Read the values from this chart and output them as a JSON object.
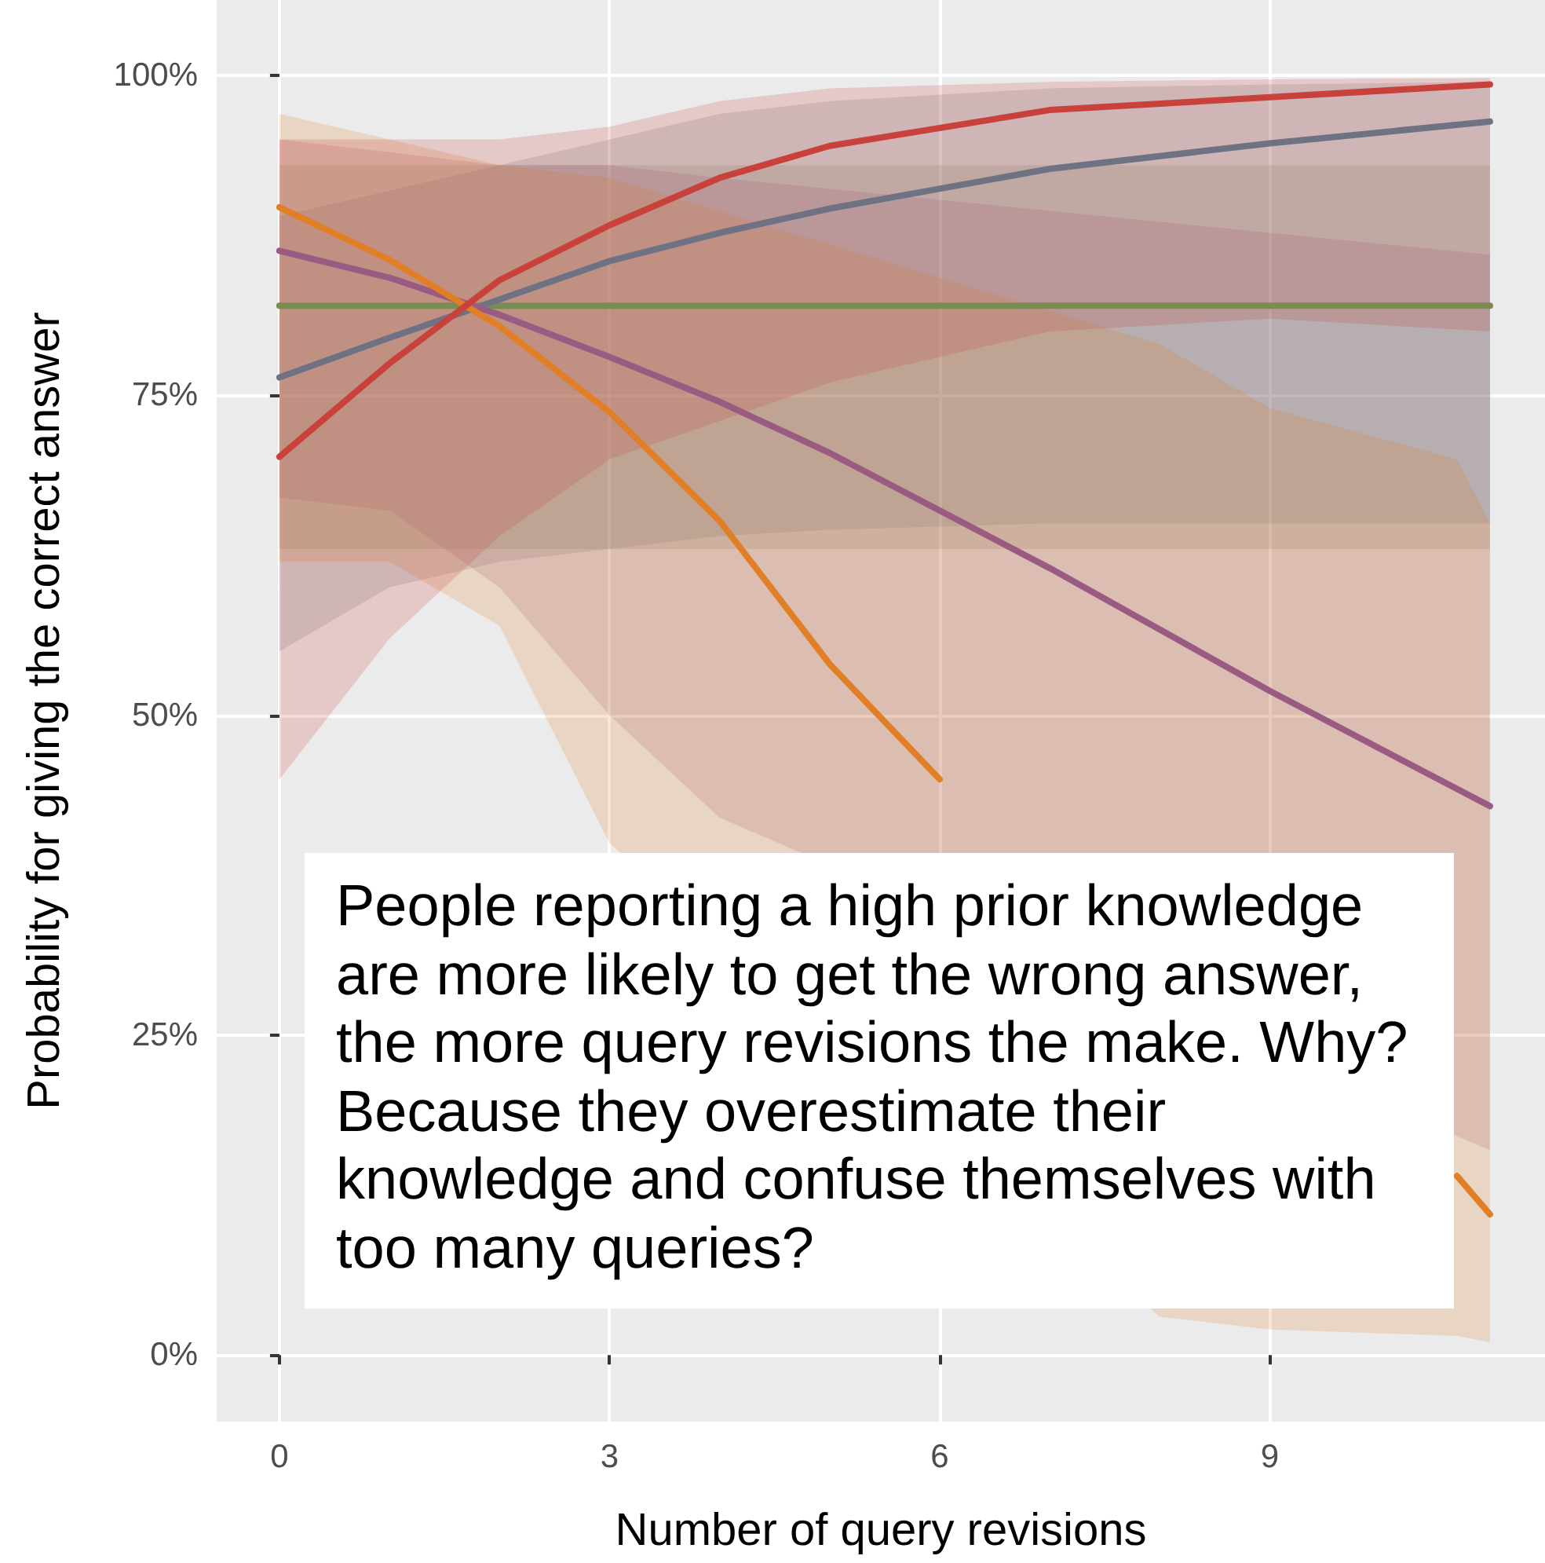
{
  "chart_data": {
    "type": "line",
    "xlabel": "Number of query revisions",
    "ylabel": "Probability for giving the correct answer",
    "x": [
      0,
      1,
      2,
      3,
      4,
      5,
      7,
      9,
      11
    ],
    "series": [
      {
        "color": "#7a8c52",
        "values": [
          82,
          82,
          82,
          82,
          82,
          82,
          82,
          82,
          82
        ],
        "lower": [
          63,
          63,
          63,
          63,
          63,
          63,
          63,
          63,
          63
        ],
        "upper": [
          93,
          93,
          93,
          93,
          93,
          93,
          93,
          93,
          93
        ]
      },
      {
        "color": "#6e7283",
        "values": [
          76.4,
          79.5,
          82.5,
          85.5,
          87.7,
          89.6,
          92.7,
          94.7,
          96.4
        ],
        "lower": [
          55,
          60,
          62,
          63,
          64,
          64.5,
          65,
          65,
          65
        ],
        "upper": [
          89,
          91,
          93,
          95,
          97,
          98,
          99,
          99.3,
          99.5
        ]
      },
      {
        "color": "#9a5b82",
        "values": [
          86.3,
          84.2,
          81.3,
          78,
          74.5,
          70.5,
          61.5,
          51.9,
          42.9
        ],
        "lower": [
          67,
          66,
          60,
          50,
          42,
          null,
          null,
          null,
          16
        ],
        "upper": [
          95,
          94,
          93,
          93,
          92,
          null,
          null,
          null,
          86
        ]
      },
      {
        "color": "#e07f25",
        "x": [
          0,
          1,
          2,
          3,
          4,
          5,
          6,
          7,
          8,
          9,
          10.7,
          11
        ],
        "values": [
          89.7,
          85.6,
          80.4,
          73.7,
          65.2,
          54,
          45,
          null,
          null,
          null,
          14,
          11
        ],
        "lower": [
          62,
          62,
          57,
          40,
          null,
          null,
          null,
          null,
          3,
          2,
          1.5,
          1
        ],
        "upper": [
          97,
          95,
          93,
          92,
          null,
          null,
          null,
          null,
          79,
          74,
          70,
          65
        ]
      },
      {
        "color": "#c8413a",
        "values": [
          70.2,
          77.5,
          84,
          88.3,
          92,
          94.5,
          97.3,
          98.3,
          99.3
        ],
        "lower": [
          45,
          56,
          64,
          70,
          73,
          76,
          80,
          81,
          80
        ],
        "upper": [
          95,
          95,
          95,
          96,
          98,
          99,
          99.5,
          99.7,
          99.8
        ]
      }
    ],
    "xlim": [
      -0.57,
      11.5
    ],
    "xticks": [
      0,
      3,
      6,
      9
    ],
    "ylim": [
      -5.2,
      105.9
    ],
    "yticks": [
      {
        "value": 0,
        "label": "0%"
      },
      {
        "value": 25,
        "label": "25%"
      },
      {
        "value": 50,
        "label": "50%"
      },
      {
        "value": 75,
        "label": "75%"
      },
      {
        "value": 100,
        "label": "100%"
      }
    ],
    "grid": true,
    "marker": "none",
    "line_style": "solid",
    "annotations": [
      "People reporting a high prior knowledge are more likely to get the wrong answer, the more query revisions the make. Why? Because they overestimate their knowledge and confuse themselves with too many queries?"
    ]
  }
}
